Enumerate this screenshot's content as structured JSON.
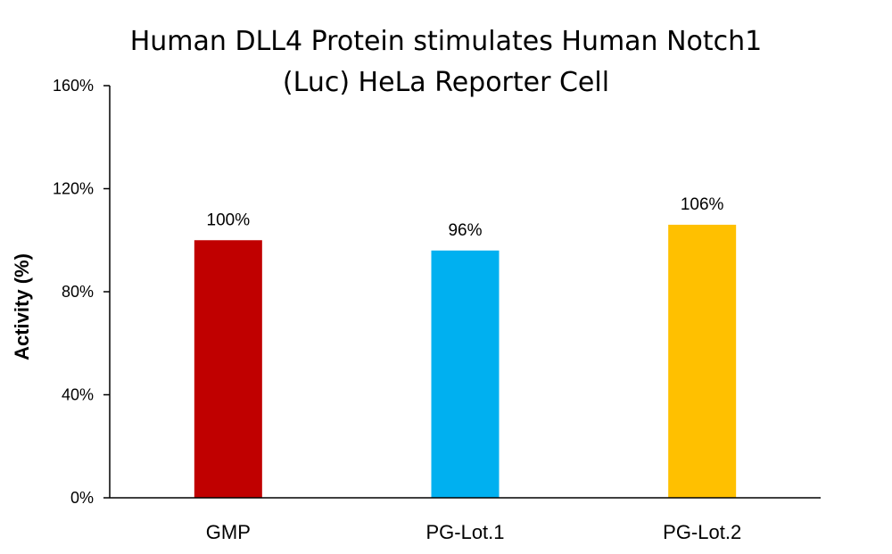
{
  "chart_data": {
    "type": "bar",
    "title_lines": [
      "Human DLL4 Protein stimulates Human Notch1",
      "(Luc) HeLa Reporter Cell"
    ],
    "ylabel": "Activity  (%)",
    "xlabel": "",
    "categories": [
      "GMP",
      "PG-Lot.1",
      "PG-Lot.2"
    ],
    "values": [
      100,
      96,
      106
    ],
    "value_labels": [
      "100%",
      "96%",
      "106%"
    ],
    "colors": [
      "#c00000",
      "#00b0f0",
      "#ffc000"
    ],
    "ylim": [
      0,
      160
    ],
    "yticks": [
      0,
      40,
      80,
      120,
      160
    ],
    "ytick_labels": [
      "0%",
      "40%",
      "80%",
      "120%",
      "160%"
    ],
    "grid": false,
    "legend": "none"
  }
}
